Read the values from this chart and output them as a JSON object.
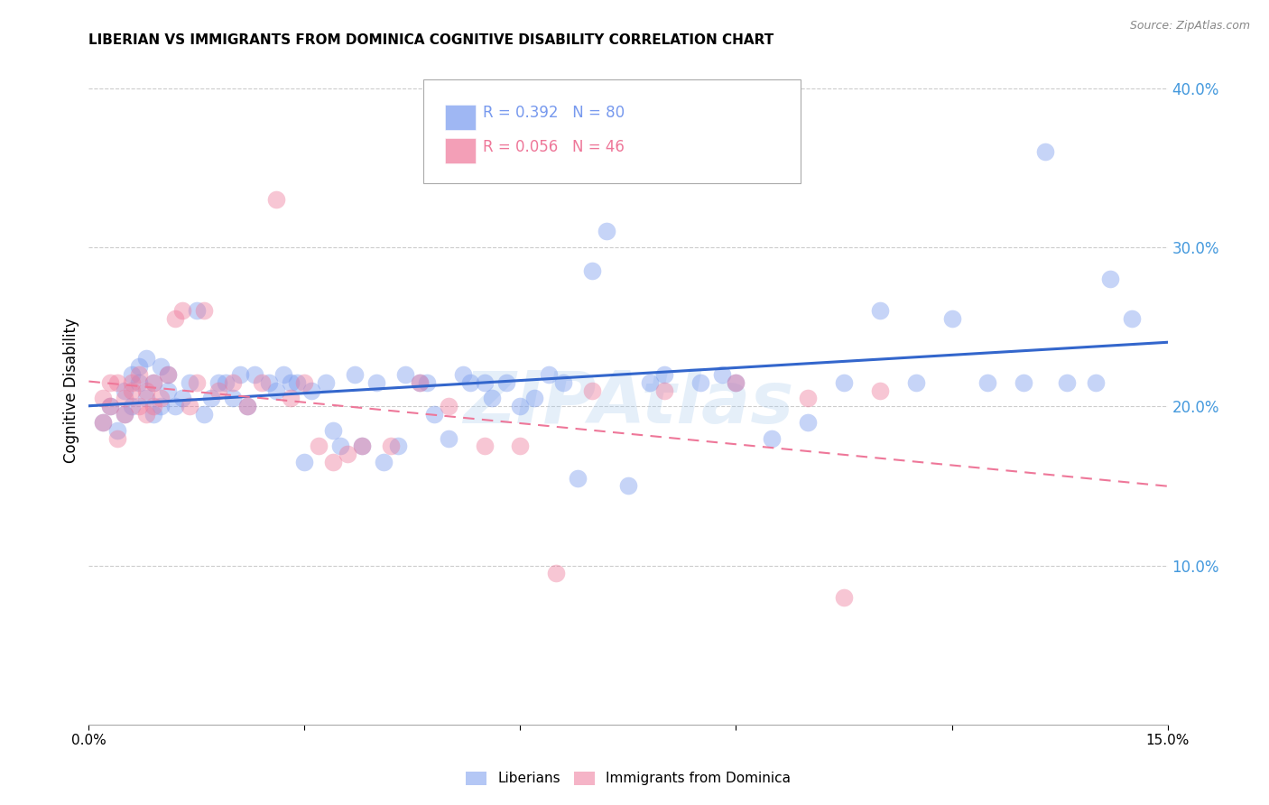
{
  "title": "LIBERIAN VS IMMIGRANTS FROM DOMINICA COGNITIVE DISABILITY CORRELATION CHART",
  "source": "Source: ZipAtlas.com",
  "ylabel": "Cognitive Disability",
  "xlim": [
    0.0,
    0.15
  ],
  "ylim": [
    0.0,
    0.42
  ],
  "ytick_labels_right": [
    "10.0%",
    "20.0%",
    "30.0%",
    "40.0%"
  ],
  "ytick_vals": [
    0.1,
    0.2,
    0.3,
    0.4
  ],
  "grid_color": "#cccccc",
  "background_color": "#ffffff",
  "liberian_color": "#7799ee",
  "dominica_color": "#ee7799",
  "liberian_line_color": "#3366cc",
  "dominica_line_color": "#ee7799",
  "R_liberian": 0.392,
  "N_liberian": 80,
  "R_dominica": 0.056,
  "N_dominica": 46,
  "watermark": "ZIPAtlas",
  "legend_label_liberian": "Liberians",
  "legend_label_dominica": "Immigrants from Dominica",
  "liberian_scatter_x": [
    0.002,
    0.003,
    0.004,
    0.005,
    0.005,
    0.006,
    0.006,
    0.007,
    0.007,
    0.008,
    0.008,
    0.009,
    0.009,
    0.01,
    0.01,
    0.011,
    0.011,
    0.012,
    0.013,
    0.014,
    0.015,
    0.016,
    0.017,
    0.018,
    0.019,
    0.02,
    0.021,
    0.022,
    0.023,
    0.025,
    0.026,
    0.027,
    0.028,
    0.029,
    0.03,
    0.031,
    0.033,
    0.034,
    0.035,
    0.037,
    0.038,
    0.04,
    0.041,
    0.043,
    0.044,
    0.046,
    0.047,
    0.048,
    0.05,
    0.052,
    0.053,
    0.055,
    0.056,
    0.058,
    0.06,
    0.062,
    0.064,
    0.066,
    0.068,
    0.07,
    0.072,
    0.075,
    0.078,
    0.08,
    0.085,
    0.088,
    0.09,
    0.095,
    0.1,
    0.105,
    0.11,
    0.115,
    0.12,
    0.125,
    0.13,
    0.133,
    0.136,
    0.14,
    0.142,
    0.145
  ],
  "liberian_scatter_y": [
    0.19,
    0.2,
    0.185,
    0.21,
    0.195,
    0.22,
    0.2,
    0.215,
    0.225,
    0.205,
    0.23,
    0.195,
    0.215,
    0.2,
    0.225,
    0.21,
    0.22,
    0.2,
    0.205,
    0.215,
    0.26,
    0.195,
    0.205,
    0.215,
    0.215,
    0.205,
    0.22,
    0.2,
    0.22,
    0.215,
    0.21,
    0.22,
    0.215,
    0.215,
    0.165,
    0.21,
    0.215,
    0.185,
    0.175,
    0.22,
    0.175,
    0.215,
    0.165,
    0.175,
    0.22,
    0.215,
    0.215,
    0.195,
    0.18,
    0.22,
    0.215,
    0.215,
    0.205,
    0.215,
    0.2,
    0.205,
    0.22,
    0.215,
    0.155,
    0.285,
    0.31,
    0.15,
    0.215,
    0.22,
    0.215,
    0.22,
    0.215,
    0.18,
    0.19,
    0.215,
    0.26,
    0.215,
    0.255,
    0.215,
    0.215,
    0.36,
    0.215,
    0.215,
    0.28,
    0.255
  ],
  "dominica_scatter_x": [
    0.002,
    0.002,
    0.003,
    0.003,
    0.004,
    0.004,
    0.005,
    0.005,
    0.006,
    0.006,
    0.007,
    0.007,
    0.008,
    0.008,
    0.009,
    0.009,
    0.01,
    0.011,
    0.012,
    0.013,
    0.014,
    0.015,
    0.016,
    0.018,
    0.02,
    0.022,
    0.024,
    0.026,
    0.028,
    0.03,
    0.032,
    0.034,
    0.036,
    0.038,
    0.042,
    0.046,
    0.05,
    0.055,
    0.06,
    0.065,
    0.07,
    0.08,
    0.09,
    0.1,
    0.105,
    0.11
  ],
  "dominica_scatter_y": [
    0.19,
    0.205,
    0.2,
    0.215,
    0.18,
    0.215,
    0.195,
    0.205,
    0.21,
    0.215,
    0.2,
    0.22,
    0.195,
    0.21,
    0.2,
    0.215,
    0.205,
    0.22,
    0.255,
    0.26,
    0.2,
    0.215,
    0.26,
    0.21,
    0.215,
    0.2,
    0.215,
    0.33,
    0.205,
    0.215,
    0.175,
    0.165,
    0.17,
    0.175,
    0.175,
    0.215,
    0.2,
    0.175,
    0.175,
    0.095,
    0.21,
    0.21,
    0.215,
    0.205,
    0.08,
    0.21
  ]
}
